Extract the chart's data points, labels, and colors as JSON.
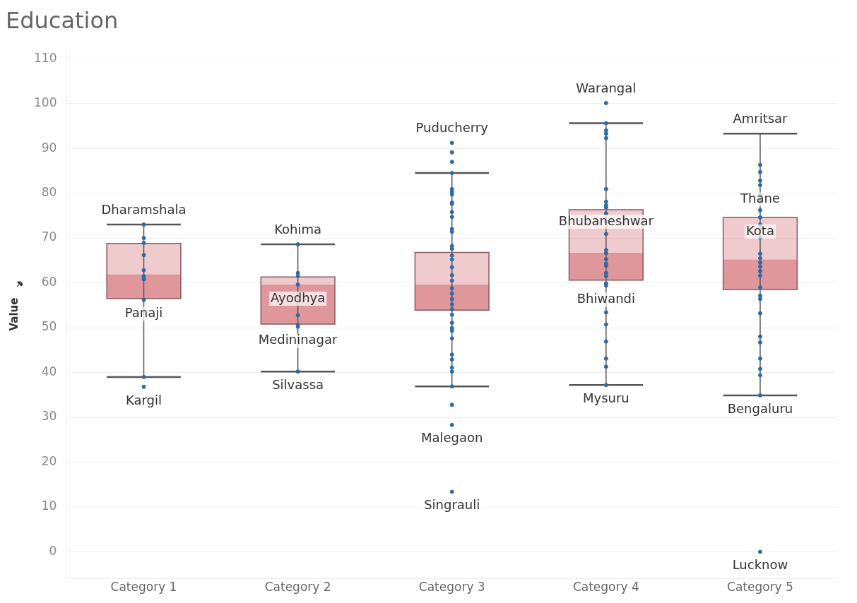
{
  "chart_data": {
    "type": "box",
    "title": "Education",
    "ylabel": "Value",
    "categories": [
      "Category 1",
      "Category 2",
      "Category 3",
      "Category 4",
      "Category 5"
    ],
    "ylim": [
      -6,
      112
    ],
    "yticks": [
      0,
      10,
      20,
      30,
      40,
      50,
      60,
      70,
      80,
      90,
      100,
      110
    ],
    "grid": "y",
    "color": "#dc8c91",
    "boxes": [
      {
        "low": 39,
        "q1": 56.5,
        "median": 61.9,
        "q3": 68.8,
        "high": 73
      },
      {
        "low": 40.2,
        "q1": 50.8,
        "median": 59.6,
        "q3": 61.3,
        "high": 68.6
      },
      {
        "low": 36.9,
        "q1": 53.9,
        "median": 59.6,
        "q3": 66.8,
        "high": 84.5
      },
      {
        "low": 37.2,
        "q1": 60.6,
        "median": 66.7,
        "q3": 76.3,
        "high": 95.6
      },
      {
        "low": 34.9,
        "q1": 58.5,
        "median": 65.2,
        "q3": 74.6,
        "high": 93.3
      }
    ],
    "series": [
      {
        "type": "scatter",
        "color": "#2e6aa8",
        "marker": "circle",
        "x": [
          "Category 1",
          "Category 1",
          "Category 1",
          "Category 1",
          "Category 1",
          "Category 1",
          "Category 1",
          "Category 1",
          "Category 1",
          "Category 1",
          "Category 1",
          "Category 2",
          "Category 2",
          "Category 2",
          "Category 2",
          "Category 2",
          "Category 2",
          "Category 2",
          "Category 2",
          "Category 3",
          "Category 3",
          "Category 3",
          "Category 3",
          "Category 3",
          "Category 3",
          "Category 3",
          "Category 3",
          "Category 3",
          "Category 3",
          "Category 3",
          "Category 3",
          "Category 3",
          "Category 3",
          "Category 3",
          "Category 3",
          "Category 3",
          "Category 3",
          "Category 3",
          "Category 3",
          "Category 3",
          "Category 3",
          "Category 3",
          "Category 3",
          "Category 3",
          "Category 3",
          "Category 3",
          "Category 3",
          "Category 3",
          "Category 3",
          "Category 3",
          "Category 3",
          "Category 3",
          "Category 3",
          "Category 3",
          "Category 3",
          "Category 3",
          "Category 3",
          "Category 4",
          "Category 4",
          "Category 4",
          "Category 4",
          "Category 4",
          "Category 4",
          "Category 4",
          "Category 4",
          "Category 4",
          "Category 4",
          "Category 4",
          "Category 4",
          "Category 4",
          "Category 4",
          "Category 4",
          "Category 4",
          "Category 4",
          "Category 4",
          "Category 4",
          "Category 4",
          "Category 4",
          "Category 4",
          "Category 4",
          "Category 4",
          "Category 4",
          "Category 4",
          "Category 4",
          "Category 5",
          "Category 5",
          "Category 5",
          "Category 5",
          "Category 5",
          "Category 5",
          "Category 5",
          "Category 5",
          "Category 5",
          "Category 5",
          "Category 5",
          "Category 5",
          "Category 5",
          "Category 5",
          "Category 5",
          "Category 5",
          "Category 5",
          "Category 5",
          "Category 5",
          "Category 5",
          "Category 5",
          "Category 5",
          "Category 5",
          "Category 5",
          "Category 5",
          "Category 5",
          "Category 5"
        ],
        "values": [
          73.0,
          70.0,
          68.9,
          66.2,
          62.8,
          61.5,
          61.1,
          60.8,
          56.2,
          39.0,
          36.8,
          68.6,
          62.2,
          61.5,
          59.6,
          52.8,
          50.6,
          50.2,
          40.2,
          91.2,
          89.1,
          87.0,
          84.5,
          80.9,
          80.3,
          79.7,
          77.9,
          77.6,
          75.8,
          74.7,
          72.0,
          71.4,
          68.2,
          67.6,
          66.1,
          65.2,
          63.5,
          61.7,
          60.5,
          58.8,
          57.6,
          56.4,
          55.2,
          54.1,
          52.9,
          51.1,
          49.9,
          49.3,
          47.6,
          44.0,
          42.9,
          41.1,
          40.2,
          36.9,
          32.8,
          28.3,
          13.4,
          100.1,
          95.6,
          94.0,
          92.3,
          80.9,
          78.1,
          77.3,
          76.8,
          75.5,
          73.7,
          70.9,
          67.3,
          66.6,
          65.3,
          64.3,
          63.8,
          62.2,
          61.5,
          59.9,
          59.4,
          53.4,
          50.7,
          46.9,
          43.1,
          41.3,
          37.2,
          93.3,
          86.3,
          84.7,
          82.8,
          81.8,
          79.5,
          78.2,
          76.2,
          74.6,
          73.0,
          70.1,
          66.5,
          65.5,
          64.5,
          63.6,
          62.6,
          61.6,
          59.0,
          57.1,
          56.4,
          53.2,
          48.0,
          46.7,
          43.1,
          40.8,
          39.4,
          34.9,
          0.0
        ]
      }
    ],
    "annotations": [
      {
        "text": "Dharamshala",
        "x": "Category 1",
        "y": 73.0
      },
      {
        "text": "Panaji",
        "x": "Category 1",
        "y": 56.2
      },
      {
        "text": "Kargil",
        "x": "Category 1",
        "y": 36.8
      },
      {
        "text": "Kohima",
        "x": "Category 2",
        "y": 68.6
      },
      {
        "text": "Ayodhya",
        "x": "Category 2",
        "y": 59.6
      },
      {
        "text": "Medininagar",
        "x": "Category 2",
        "y": 50.2
      },
      {
        "text": "Silvassa",
        "x": "Category 2",
        "y": 40.2
      },
      {
        "text": "Puducherry",
        "x": "Category 3",
        "y": 91.2
      },
      {
        "text": "Malegaon",
        "x": "Category 3",
        "y": 28.3
      },
      {
        "text": "Singrauli",
        "x": "Category 3",
        "y": 13.4
      },
      {
        "text": "Warangal",
        "x": "Category 4",
        "y": 100.1
      },
      {
        "text": "Bhubaneshwar",
        "x": "Category 4",
        "y": 76.8
      },
      {
        "text": "Bhiwandi",
        "x": "Category 4",
        "y": 59.4
      },
      {
        "text": "Mysuru",
        "x": "Category 4",
        "y": 37.2
      },
      {
        "text": "Amritsar",
        "x": "Category 5",
        "y": 93.3
      },
      {
        "text": "Thane",
        "x": "Category 5",
        "y": 81.8
      },
      {
        "text": "Kota",
        "x": "Category 5",
        "y": 74.6
      },
      {
        "text": "Bengaluru",
        "x": "Category 5",
        "y": 34.9
      },
      {
        "text": "Lucknow",
        "x": "Category 5",
        "y": 0.0
      }
    ]
  }
}
